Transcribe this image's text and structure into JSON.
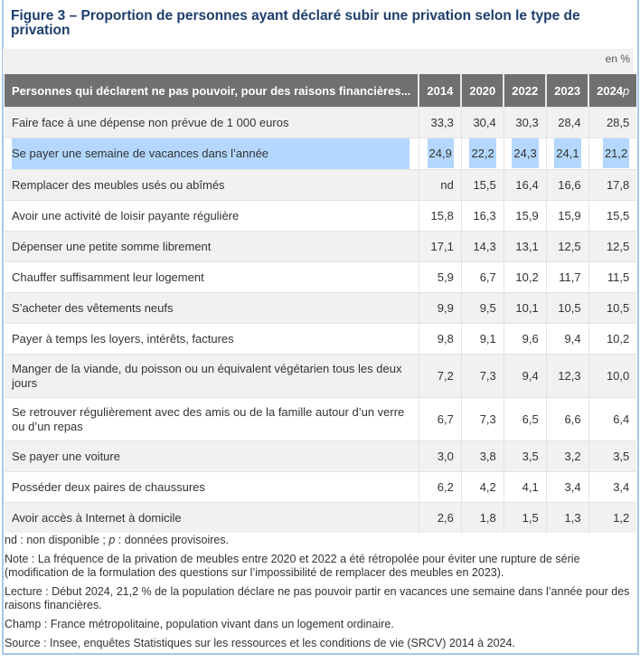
{
  "figure": {
    "title": "Figure 3 – Proportion de personnes ayant déclaré subir une privation selon le type de privation",
    "unit": "en %"
  },
  "table": {
    "columns": [
      "Personnes qui déclarent ne pas pouvoir, pour des raisons financières...",
      "2014",
      "2020",
      "2022",
      "2023",
      "2024p"
    ],
    "rows": [
      {
        "label": "Faire face à une dépense non prévue de 1 000 euros",
        "values": [
          "33,3",
          "30,4",
          "30,3",
          "28,4",
          "28,5"
        ]
      },
      {
        "label": "Se payer une semaine de vacances dans l’année",
        "values": [
          "24,9",
          "22,2",
          "24,3",
          "24,1",
          "21,2"
        ],
        "selected": true
      },
      {
        "label": "Remplacer des meubles usés ou abîmés",
        "values": [
          "nd",
          "15,5",
          "16,4",
          "16,6",
          "17,8"
        ]
      },
      {
        "label": "Avoir une activité de loisir payante régulière",
        "values": [
          "15,8",
          "16,3",
          "15,9",
          "15,9",
          "15,5"
        ]
      },
      {
        "label": "Dépenser une petite somme librement",
        "values": [
          "17,1",
          "14,3",
          "13,1",
          "12,5",
          "12,5"
        ]
      },
      {
        "label": "Chauffer suffisamment leur logement",
        "values": [
          "5,9",
          "6,7",
          "10,2",
          "11,7",
          "11,5"
        ]
      },
      {
        "label": "S’acheter des vêtements neufs",
        "values": [
          "9,9",
          "9,5",
          "10,1",
          "10,5",
          "10,5"
        ]
      },
      {
        "label": "Payer à temps les loyers, intérêts, factures",
        "values": [
          "9,8",
          "9,1",
          "9,6",
          "9,4",
          "10,2"
        ]
      },
      {
        "label": "Manger de la viande, du poisson ou un équivalent végétarien tous les deux jours",
        "values": [
          "7,2",
          "7,3",
          "9,4",
          "12,3",
          "10,0"
        ],
        "double": true
      },
      {
        "label": "Se retrouver régulièrement avec des amis ou de la famille autour d’un verre ou d’un repas",
        "values": [
          "6,7",
          "7,3",
          "6,5",
          "6,6",
          "6,4"
        ],
        "double": true
      },
      {
        "label": "Se payer une voiture",
        "values": [
          "3,0",
          "3,8",
          "3,5",
          "3,2",
          "3,5"
        ]
      },
      {
        "label": "Posséder deux paires de chaussures",
        "values": [
          "6,2",
          "4,2",
          "4,1",
          "3,4",
          "3,4"
        ]
      },
      {
        "label": "Avoir accès à Internet à domicile",
        "values": [
          "2,6",
          "1,8",
          "1,5",
          "1,3",
          "1,2"
        ]
      }
    ]
  },
  "notes": {
    "legend": "nd : non disponible ; p : données provisoires.",
    "note": "Note : La fréquence de la privation de meubles entre 2020 et 2022 a été rétropolée pour éviter une rupture de série (modification de la formulation des questions sur l’impossibilité de remplacer des meubles en 2023).",
    "lecture": "Lecture : Début 2024, 21,2 % de la population déclare ne pas pouvoir partir en vacances une semaine dans l’année pour des raisons financières.",
    "champ": "Champ : France métropolitaine, population vivant dans un logement ordinaire.",
    "source": "Source : Insee, enquêtes Statistiques sur les ressources et les conditions de vie (SRCV) 2014 à 2024."
  },
  "colors": {
    "title": "#1d3e6d",
    "header": "#707070",
    "selection": "#b3d7ff",
    "frame": "#a9c6ea"
  }
}
